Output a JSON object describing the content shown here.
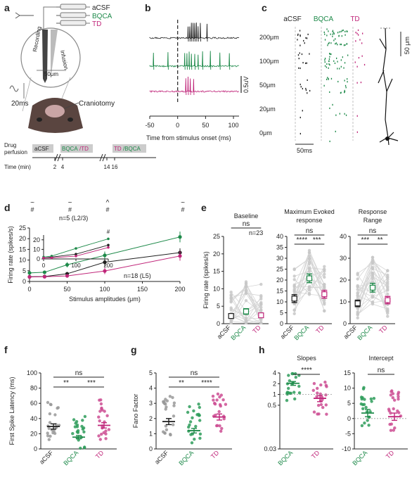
{
  "colors": {
    "acsf": "#1f1f1f",
    "bqca": "#1e8a4a",
    "td": "#c0267a",
    "grey": "#c8c8c8"
  },
  "panels": {
    "a": {
      "label": "a",
      "drugs": [
        "aCSF",
        "BQCA",
        "TD"
      ],
      "recording": "Recording",
      "infusion": "Infusion",
      "scale50": "50μm",
      "scale20ms": "20ms",
      "craniotomy": "Craniotomy",
      "drug_perfusion": "Drug perfusion",
      "stages": [
        "aCSF",
        "BQCA/TD",
        "TD/BQCA"
      ],
      "time_label": "Time (min)",
      "ticks": [
        "2",
        "4",
        "14",
        "16"
      ]
    },
    "b": {
      "label": "b",
      "scale": "0.5uV",
      "xlabel": "Time from stimulus onset (ms)",
      "xticks": [
        "-50",
        "0",
        "50",
        "100"
      ]
    },
    "c": {
      "label": "c",
      "headers": [
        "aCSF",
        "BQCA",
        "TD"
      ],
      "rows": [
        "200μm",
        "100μm",
        "50μm",
        "20μm",
        "0μm"
      ],
      "scale_time": "50ms",
      "scale_len": "50 μm"
    },
    "d": {
      "label": "d",
      "sig_marks": [
        "~ #",
        "~ #",
        "^ #",
        "~ #"
      ],
      "inset_title": "n=5 (L2/3)",
      "main_note": "n=18 (L5)"
    },
    "e": {
      "label": "e"
    },
    "f": {
      "label": "f"
    },
    "g": {
      "label": "g"
    },
    "h": {
      "label": "h"
    }
  },
  "chart_data": [
    {
      "type": "line",
      "id": "d",
      "xlabel": "Stimulus amplitudes (μm)",
      "ylabel": "Firing rate (spikes/s)",
      "xlim": [
        0,
        200
      ],
      "ylim": [
        0,
        25
      ],
      "xticks": [
        0,
        50,
        100,
        150,
        200
      ],
      "yticks": [
        0,
        5,
        10,
        15,
        20,
        25
      ],
      "x": [
        0,
        20,
        50,
        100,
        200
      ],
      "series": [
        {
          "color": "#1f1f1f",
          "values": [
            2.2,
            2.3,
            3.6,
            9.0,
            13.5
          ],
          "err": [
            0.6,
            0.6,
            0.8,
            1.8,
            2.0
          ]
        },
        {
          "color": "#1e8a4a",
          "values": [
            4.0,
            4.3,
            7.8,
            12.2,
            20.8
          ],
          "err": [
            0.7,
            0.8,
            1.2,
            1.8,
            2.5
          ]
        },
        {
          "color": "#c0267a",
          "values": [
            2.1,
            2.2,
            2.6,
            4.9,
            11.9
          ],
          "err": [
            0.5,
            0.5,
            0.7,
            1.5,
            2.2
          ]
        }
      ],
      "inset": {
        "xlim": [
          0,
          200
        ],
        "ylim": [
          0,
          25
        ],
        "xticks": [
          0,
          100,
          200
        ],
        "yticks": [
          0,
          10,
          20
        ],
        "x": [
          0,
          25,
          100,
          200
        ],
        "sig": "#",
        "series": [
          {
            "color": "#1f1f1f",
            "values": [
              1.0,
              2.0,
              5.0,
              14.5
            ]
          },
          {
            "color": "#1e8a4a",
            "values": [
              2.0,
              3.0,
              11.0,
              21.0
            ]
          },
          {
            "color": "#c0267a",
            "values": [
              1.0,
              1.2,
              3.0,
              12.0
            ]
          }
        ]
      }
    },
    {
      "type": "scatter",
      "id": "e1",
      "title": "Baseline",
      "ylabel": "Firing rate (spikes/s)",
      "ylim": [
        0,
        25
      ],
      "yticks": [
        0,
        5,
        10,
        15,
        20,
        25
      ],
      "categories": [
        "aCSF",
        "BQCA",
        "TD"
      ],
      "means": [
        2.2,
        3.5,
        2.4
      ],
      "sem": [
        0.6,
        0.8,
        0.6
      ],
      "comparisons": [
        {
          "from": 0,
          "to": 2,
          "label": "ns"
        }
      ],
      "note": "n=23"
    },
    {
      "type": "scatter",
      "id": "e2",
      "title": "Maximum Evoked response",
      "ylim": [
        0,
        40
      ],
      "yticks": [
        0,
        5,
        10,
        15,
        20,
        25,
        30,
        35,
        40
      ],
      "categories": [
        "aCSF",
        "BQCA",
        "TD"
      ],
      "means": [
        11.5,
        20.8,
        13.5
      ],
      "sem": [
        1.8,
        2.0,
        1.8
      ],
      "comparisons": [
        {
          "from": 0,
          "to": 1,
          "label": "****"
        },
        {
          "from": 1,
          "to": 2,
          "label": "***"
        },
        {
          "from": 0,
          "to": 2,
          "label": "ns"
        }
      ]
    },
    {
      "type": "scatter",
      "id": "e3",
      "title": "Response Range",
      "ylim": [
        0,
        40
      ],
      "yticks": [
        0,
        10,
        20,
        30,
        40
      ],
      "categories": [
        "aCSF",
        "BQCA",
        "TD"
      ],
      "means": [
        9.3,
        16.5,
        10.8
      ],
      "sem": [
        1.5,
        2.0,
        1.7
      ],
      "comparisons": [
        {
          "from": 0,
          "to": 1,
          "label": "***"
        },
        {
          "from": 1,
          "to": 2,
          "label": "**"
        },
        {
          "from": 0,
          "to": 2,
          "label": "ns"
        }
      ]
    },
    {
      "type": "scatter",
      "id": "f",
      "ylabel": "First Spike Latency (ms)",
      "ylim": [
        0,
        100
      ],
      "yticks": [
        0,
        20,
        40,
        60,
        80,
        100
      ],
      "categories": [
        "aCSF",
        "BQCA",
        "TD"
      ],
      "means": [
        29.5,
        15.5,
        31.0
      ],
      "sem": [
        3.5,
        2.2,
        3.5
      ],
      "comparisons": [
        {
          "from": 0,
          "to": 1,
          "label": "**"
        },
        {
          "from": 1,
          "to": 2,
          "label": "***"
        },
        {
          "from": 0,
          "to": 2,
          "label": "ns"
        }
      ]
    },
    {
      "type": "scatter",
      "id": "g",
      "ylabel": "Fano Factor",
      "ylim": [
        0,
        5
      ],
      "yticks": [
        0,
        1,
        2,
        3,
        4,
        5
      ],
      "categories": [
        "aCSF",
        "BQCA",
        "TD"
      ],
      "means": [
        1.8,
        1.2,
        2.1
      ],
      "sem": [
        0.2,
        0.15,
        0.2
      ],
      "comparisons": [
        {
          "from": 0,
          "to": 1,
          "label": "**"
        },
        {
          "from": 1,
          "to": 2,
          "label": "****"
        },
        {
          "from": 0,
          "to": 2,
          "label": "ns"
        }
      ]
    },
    {
      "type": "scatter",
      "id": "h1",
      "title": "Slopes",
      "scale": "log",
      "ylim": [
        0.03,
        4
      ],
      "yticks": [
        0.03,
        0.5,
        1,
        2,
        4
      ],
      "categories": [
        "BQCA",
        "TD"
      ],
      "means": [
        2.05,
        0.78
      ],
      "sem": [
        0.25,
        0.15
      ],
      "comparisons": [
        {
          "from": 0,
          "to": 1,
          "label": "****"
        }
      ]
    },
    {
      "type": "scatter",
      "id": "h2",
      "title": "Intercept",
      "ylim": [
        -10,
        15
      ],
      "yticks": [
        -10,
        -5,
        0,
        5,
        10,
        15
      ],
      "categories": [
        "BQCA",
        "TD"
      ],
      "means": [
        1.8,
        0.6
      ],
      "sem": [
        1.2,
        1.2
      ],
      "comparisons": [
        {
          "from": 0,
          "to": 1,
          "label": "ns"
        }
      ]
    }
  ]
}
